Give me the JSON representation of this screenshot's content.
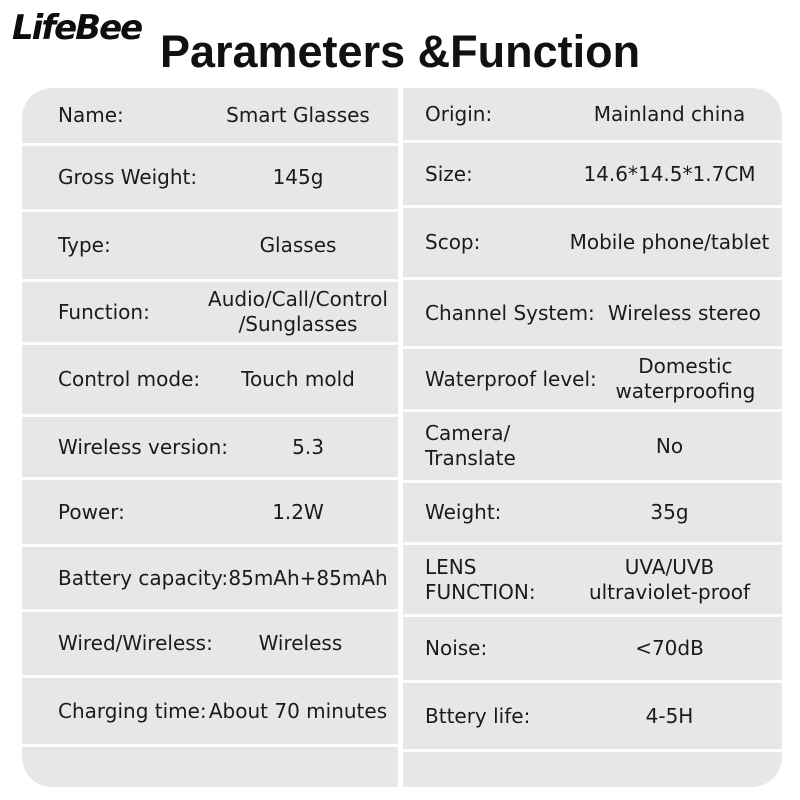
{
  "brand": {
    "logo_text": "LifeBee"
  },
  "header": {
    "title": "Parameters &Function"
  },
  "colors": {
    "page_bg": "#ffffff",
    "row_bg": "#e7e7e7",
    "divider": "#fcfcfc",
    "text": "#1b1b1b"
  },
  "table": {
    "left": [
      {
        "label": "Name:",
        "value": "Smart Glasses"
      },
      {
        "label": "Gross Weight:",
        "value": "145g"
      },
      {
        "label": "Type:",
        "value": "Glasses"
      },
      {
        "label": "Function:",
        "value": "Audio/Call/Control\n/Sunglasses"
      },
      {
        "label": "Control mode:",
        "value": "Touch mold"
      },
      {
        "label": "Wireless version:",
        "value": "5.3"
      },
      {
        "label": "Power:",
        "value": "1.2W"
      },
      {
        "label": "Battery capacity:",
        "value": "85mAh+85mAh"
      },
      {
        "label": "Wired/Wireless:",
        "value": "Wireless"
      },
      {
        "label": "Charging time:",
        "value": "About 70 minutes"
      }
    ],
    "right": [
      {
        "label": "Origin:",
        "value": "Mainland china"
      },
      {
        "label": "Size:",
        "value": "14.6*14.5*1.7CM"
      },
      {
        "label": "Scop:",
        "value": "Mobile phone/tablet"
      },
      {
        "label": "Channel System:",
        "value": "Wireless stereo"
      },
      {
        "label": "Waterproof level:",
        "value": "Domestic\nwaterproofing"
      },
      {
        "label": "Camera/\nTranslate",
        "value": "No"
      },
      {
        "label": "Weight:",
        "value": "35g"
      },
      {
        "label": "LENS\nFUNCTION:",
        "value": "UVA/UVB\nultraviolet-proof"
      },
      {
        "label": "Noise:",
        "value": "<70dB"
      },
      {
        "label": "Bttery life:",
        "value": "4-5H"
      }
    ]
  }
}
